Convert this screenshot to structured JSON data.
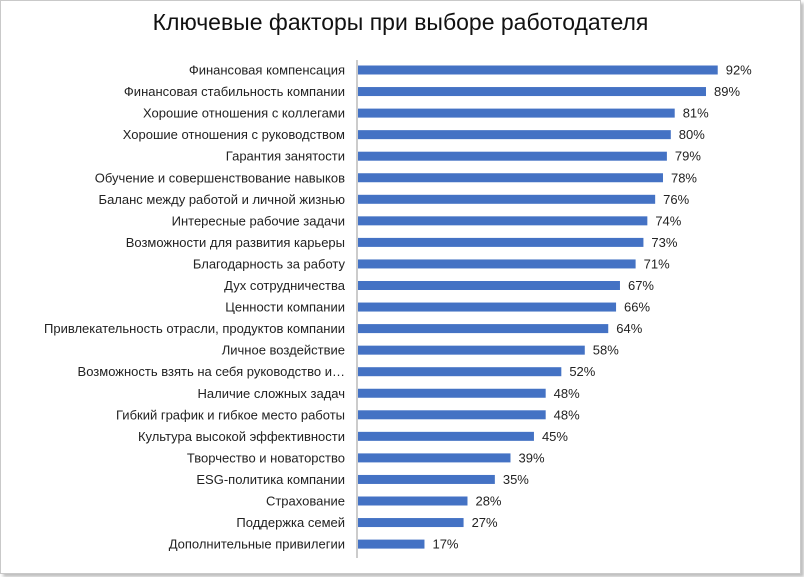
{
  "title": "Ключевые факторы при выборе работодателя",
  "colors": {
    "bar": "#4472C4",
    "axis": "#9a9a9a",
    "text": "#222222"
  },
  "chart_data": {
    "type": "bar",
    "orientation": "horizontal",
    "title": "Ключевые факторы при выборе работодателя",
    "value_suffix": "%",
    "xlim": [
      0,
      100
    ],
    "grid": false,
    "categories": [
      "Финансовая компенсация",
      "Финансовая стабильность компании",
      "Хорошие отношения с коллегами",
      "Хорошие отношения с руководством",
      "Гарантия занятости",
      "Обучение и совершенствование навыков",
      "Баланс между работой и личной жизнью",
      "Интересные рабочие задачи",
      "Возможности для развития карьеры",
      "Благодарность за работу",
      "Дух сотрудничества",
      "Ценности компании",
      "Привлекательность отрасли, продуктов компании",
      "Личное воздействие",
      "Возможность взять на себя руководство и…",
      "Наличие сложных задач",
      "Гибкий график и гибкое место работы",
      "Культура высокой эффективности",
      "Творчество и новаторство",
      "ESG-политика компании",
      "Страхование",
      "Поддержка семей",
      "Дополнительные привилегии"
    ],
    "values": [
      92,
      89,
      81,
      80,
      79,
      78,
      76,
      74,
      73,
      71,
      67,
      66,
      64,
      58,
      52,
      48,
      48,
      45,
      39,
      35,
      28,
      27,
      17
    ]
  }
}
